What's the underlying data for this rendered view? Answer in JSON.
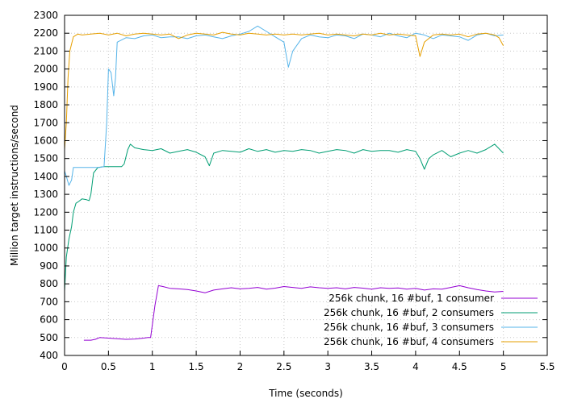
{
  "chart_data": {
    "type": "line",
    "xlabel": "Time (seconds)",
    "ylabel": "Million target instructions/second",
    "xlim": [
      0,
      5.5
    ],
    "ylim": [
      400,
      2300
    ],
    "xticks": [
      "0",
      "0.5",
      "1",
      "1.5",
      "2",
      "2.5",
      "3",
      "3.5",
      "4",
      "4.5",
      "5",
      "5.5"
    ],
    "yticks": [
      "400",
      "500",
      "600",
      "700",
      "800",
      "900",
      "1000",
      "1100",
      "1200",
      "1300",
      "1400",
      "1500",
      "1600",
      "1700",
      "1800",
      "1900",
      "2000",
      "2100",
      "2200",
      "2300"
    ],
    "grid": true,
    "legend_position": "bottom-right",
    "series": [
      {
        "name": "256k chunk, 16 #buf, 1 consumer",
        "color": "#9400d3",
        "points": [
          [
            0.22,
            485
          ],
          [
            0.3,
            485
          ],
          [
            0.35,
            490
          ],
          [
            0.4,
            500
          ],
          [
            0.5,
            497
          ],
          [
            0.6,
            493
          ],
          [
            0.7,
            490
          ],
          [
            0.8,
            492
          ],
          [
            0.9,
            497
          ],
          [
            0.95,
            500
          ],
          [
            0.98,
            500
          ],
          [
            1.03,
            680
          ],
          [
            1.07,
            790
          ],
          [
            1.12,
            785
          ],
          [
            1.2,
            775
          ],
          [
            1.3,
            772
          ],
          [
            1.4,
            768
          ],
          [
            1.5,
            760
          ],
          [
            1.6,
            750
          ],
          [
            1.7,
            765
          ],
          [
            1.8,
            772
          ],
          [
            1.9,
            778
          ],
          [
            2.0,
            772
          ],
          [
            2.1,
            775
          ],
          [
            2.2,
            780
          ],
          [
            2.3,
            770
          ],
          [
            2.4,
            776
          ],
          [
            2.5,
            785
          ],
          [
            2.6,
            780
          ],
          [
            2.7,
            775
          ],
          [
            2.8,
            783
          ],
          [
            2.9,
            778
          ],
          [
            3.0,
            775
          ],
          [
            3.1,
            778
          ],
          [
            3.2,
            772
          ],
          [
            3.3,
            780
          ],
          [
            3.4,
            776
          ],
          [
            3.5,
            770
          ],
          [
            3.6,
            778
          ],
          [
            3.7,
            775
          ],
          [
            3.8,
            777
          ],
          [
            3.9,
            770
          ],
          [
            4.0,
            775
          ],
          [
            4.1,
            765
          ],
          [
            4.2,
            772
          ],
          [
            4.3,
            770
          ],
          [
            4.4,
            780
          ],
          [
            4.5,
            790
          ],
          [
            4.6,
            778
          ],
          [
            4.7,
            768
          ],
          [
            4.8,
            760
          ],
          [
            4.9,
            755
          ],
          [
            5.0,
            758
          ]
        ]
      },
      {
        "name": "256k chunk, 16 #buf, 2 consumers",
        "color": "#009e73",
        "points": [
          [
            0.0,
            760
          ],
          [
            0.02,
            950
          ],
          [
            0.05,
            1050
          ],
          [
            0.08,
            1120
          ],
          [
            0.1,
            1200
          ],
          [
            0.13,
            1250
          ],
          [
            0.16,
            1260
          ],
          [
            0.2,
            1275
          ],
          [
            0.25,
            1270
          ],
          [
            0.28,
            1265
          ],
          [
            0.3,
            1300
          ],
          [
            0.33,
            1420
          ],
          [
            0.38,
            1450
          ],
          [
            0.45,
            1455
          ],
          [
            0.55,
            1455
          ],
          [
            0.65,
            1455
          ],
          [
            0.68,
            1470
          ],
          [
            0.72,
            1550
          ],
          [
            0.75,
            1580
          ],
          [
            0.8,
            1560
          ],
          [
            0.9,
            1550
          ],
          [
            1.0,
            1545
          ],
          [
            1.1,
            1555
          ],
          [
            1.2,
            1530
          ],
          [
            1.3,
            1540
          ],
          [
            1.4,
            1550
          ],
          [
            1.5,
            1535
          ],
          [
            1.6,
            1510
          ],
          [
            1.65,
            1460
          ],
          [
            1.7,
            1530
          ],
          [
            1.8,
            1545
          ],
          [
            1.9,
            1540
          ],
          [
            2.0,
            1535
          ],
          [
            2.1,
            1555
          ],
          [
            2.2,
            1540
          ],
          [
            2.3,
            1550
          ],
          [
            2.4,
            1535
          ],
          [
            2.5,
            1545
          ],
          [
            2.6,
            1540
          ],
          [
            2.7,
            1550
          ],
          [
            2.8,
            1545
          ],
          [
            2.9,
            1530
          ],
          [
            3.0,
            1540
          ],
          [
            3.1,
            1550
          ],
          [
            3.2,
            1545
          ],
          [
            3.3,
            1530
          ],
          [
            3.4,
            1550
          ],
          [
            3.5,
            1540
          ],
          [
            3.6,
            1545
          ],
          [
            3.7,
            1545
          ],
          [
            3.8,
            1535
          ],
          [
            3.9,
            1550
          ],
          [
            4.0,
            1540
          ],
          [
            4.05,
            1500
          ],
          [
            4.1,
            1440
          ],
          [
            4.15,
            1500
          ],
          [
            4.2,
            1520
          ],
          [
            4.3,
            1545
          ],
          [
            4.4,
            1510
          ],
          [
            4.5,
            1530
          ],
          [
            4.6,
            1545
          ],
          [
            4.7,
            1530
          ],
          [
            4.8,
            1550
          ],
          [
            4.9,
            1580
          ],
          [
            5.0,
            1530
          ]
        ]
      },
      {
        "name": "256k chunk, 16 #buf, 3 consumers",
        "color": "#56b4e9",
        "points": [
          [
            0.0,
            1430
          ],
          [
            0.02,
            1400
          ],
          [
            0.05,
            1350
          ],
          [
            0.08,
            1380
          ],
          [
            0.1,
            1450
          ],
          [
            0.2,
            1450
          ],
          [
            0.3,
            1450
          ],
          [
            0.4,
            1450
          ],
          [
            0.45,
            1455
          ],
          [
            0.48,
            1700
          ],
          [
            0.5,
            2000
          ],
          [
            0.53,
            1980
          ],
          [
            0.56,
            1850
          ],
          [
            0.58,
            1950
          ],
          [
            0.6,
            2150
          ],
          [
            0.7,
            2175
          ],
          [
            0.8,
            2170
          ],
          [
            0.9,
            2185
          ],
          [
            1.0,
            2190
          ],
          [
            1.1,
            2175
          ],
          [
            1.2,
            2180
          ],
          [
            1.3,
            2180
          ],
          [
            1.4,
            2170
          ],
          [
            1.5,
            2185
          ],
          [
            1.6,
            2190
          ],
          [
            1.7,
            2180
          ],
          [
            1.8,
            2170
          ],
          [
            1.9,
            2185
          ],
          [
            2.0,
            2195
          ],
          [
            2.1,
            2210
          ],
          [
            2.2,
            2240
          ],
          [
            2.3,
            2210
          ],
          [
            2.4,
            2180
          ],
          [
            2.5,
            2150
          ],
          [
            2.55,
            2010
          ],
          [
            2.6,
            2100
          ],
          [
            2.7,
            2170
          ],
          [
            2.8,
            2190
          ],
          [
            2.9,
            2180
          ],
          [
            3.0,
            2175
          ],
          [
            3.1,
            2190
          ],
          [
            3.2,
            2185
          ],
          [
            3.3,
            2170
          ],
          [
            3.4,
            2195
          ],
          [
            3.5,
            2190
          ],
          [
            3.6,
            2180
          ],
          [
            3.7,
            2200
          ],
          [
            3.8,
            2185
          ],
          [
            3.9,
            2175
          ],
          [
            4.0,
            2200
          ],
          [
            4.1,
            2190
          ],
          [
            4.2,
            2170
          ],
          [
            4.3,
            2190
          ],
          [
            4.4,
            2185
          ],
          [
            4.5,
            2180
          ],
          [
            4.6,
            2160
          ],
          [
            4.7,
            2190
          ],
          [
            4.8,
            2200
          ],
          [
            4.9,
            2185
          ],
          [
            5.0,
            2190
          ]
        ]
      },
      {
        "name": "256k chunk, 16 #buf, 4 consumers",
        "color": "#e69f00",
        "points": [
          [
            0.0,
            1550
          ],
          [
            0.02,
            1700
          ],
          [
            0.04,
            1950
          ],
          [
            0.06,
            2100
          ],
          [
            0.08,
            2140
          ],
          [
            0.1,
            2180
          ],
          [
            0.15,
            2195
          ],
          [
            0.2,
            2190
          ],
          [
            0.3,
            2195
          ],
          [
            0.4,
            2200
          ],
          [
            0.5,
            2190
          ],
          [
            0.6,
            2200
          ],
          [
            0.7,
            2185
          ],
          [
            0.8,
            2195
          ],
          [
            0.9,
            2200
          ],
          [
            1.0,
            2195
          ],
          [
            1.1,
            2190
          ],
          [
            1.2,
            2195
          ],
          [
            1.3,
            2170
          ],
          [
            1.4,
            2190
          ],
          [
            1.5,
            2200
          ],
          [
            1.6,
            2195
          ],
          [
            1.7,
            2190
          ],
          [
            1.8,
            2205
          ],
          [
            1.9,
            2195
          ],
          [
            2.0,
            2190
          ],
          [
            2.1,
            2200
          ],
          [
            2.2,
            2195
          ],
          [
            2.3,
            2190
          ],
          [
            2.4,
            2195
          ],
          [
            2.5,
            2190
          ],
          [
            2.6,
            2195
          ],
          [
            2.7,
            2190
          ],
          [
            2.8,
            2195
          ],
          [
            2.9,
            2200
          ],
          [
            3.0,
            2190
          ],
          [
            3.1,
            2195
          ],
          [
            3.2,
            2190
          ],
          [
            3.3,
            2185
          ],
          [
            3.4,
            2195
          ],
          [
            3.5,
            2190
          ],
          [
            3.6,
            2200
          ],
          [
            3.7,
            2190
          ],
          [
            3.8,
            2195
          ],
          [
            3.9,
            2190
          ],
          [
            4.0,
            2185
          ],
          [
            4.05,
            2070
          ],
          [
            4.1,
            2150
          ],
          [
            4.2,
            2190
          ],
          [
            4.3,
            2195
          ],
          [
            4.4,
            2190
          ],
          [
            4.5,
            2195
          ],
          [
            4.6,
            2180
          ],
          [
            4.7,
            2195
          ],
          [
            4.8,
            2200
          ],
          [
            4.9,
            2190
          ],
          [
            4.95,
            2175
          ],
          [
            5.0,
            2130
          ]
        ]
      }
    ]
  }
}
